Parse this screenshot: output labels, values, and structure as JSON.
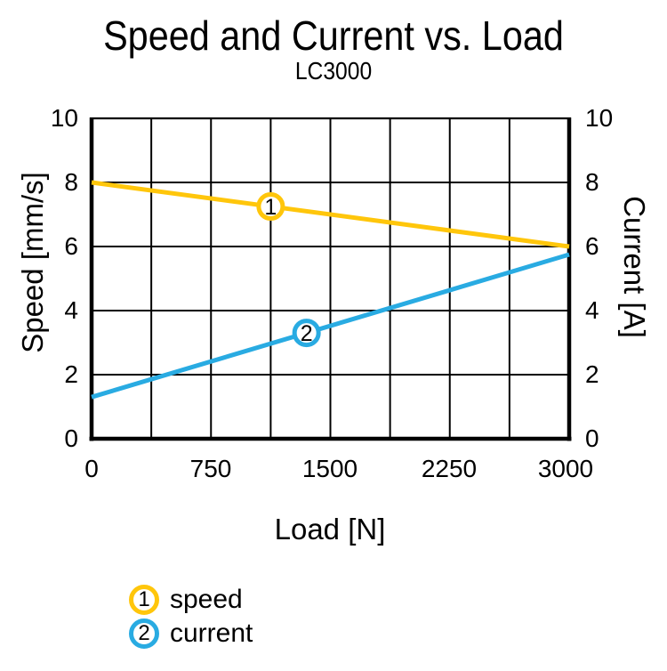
{
  "chart_data": {
    "type": "line",
    "title": "Speed and Current vs. Load",
    "subtitle": "LC3000",
    "xlabel": "Load [N]",
    "ylabel_left": "Speed [mm/s]",
    "ylabel_right": "Current [A]",
    "xlim": [
      0,
      3000
    ],
    "ylim_left": [
      0,
      10
    ],
    "ylim_right": [
      0,
      10
    ],
    "x_ticks": [
      "0",
      "750",
      "1500",
      "2250",
      "3000"
    ],
    "y_ticks_left": [
      "10",
      "8",
      "6",
      "4",
      "2",
      "0"
    ],
    "y_ticks_right": [
      "10",
      "8",
      "6",
      "4",
      "2",
      "0"
    ],
    "grid": true,
    "x_grid_step": 375,
    "y_grid_step": 2,
    "axis_color": "#000000",
    "background_color": "#ffffff",
    "series": [
      {
        "name": "speed",
        "marker": "1",
        "color": "#FFC60B",
        "axis": "left",
        "points": [
          {
            "x": 0,
            "y": 8
          },
          {
            "x": 3000,
            "y": 6
          }
        ],
        "marker_x": 1125
      },
      {
        "name": "current",
        "marker": "2",
        "color": "#29ABE2",
        "axis": "right",
        "points": [
          {
            "x": 0,
            "y": 1.3
          },
          {
            "x": 3000,
            "y": 5.75
          }
        ],
        "marker_x": 1350
      }
    ],
    "legend": {
      "position": "bottom-left",
      "items": [
        {
          "number": "1",
          "label": "speed",
          "color": "#FFC60B"
        },
        {
          "number": "2",
          "label": "current",
          "color": "#29ABE2"
        }
      ]
    }
  }
}
